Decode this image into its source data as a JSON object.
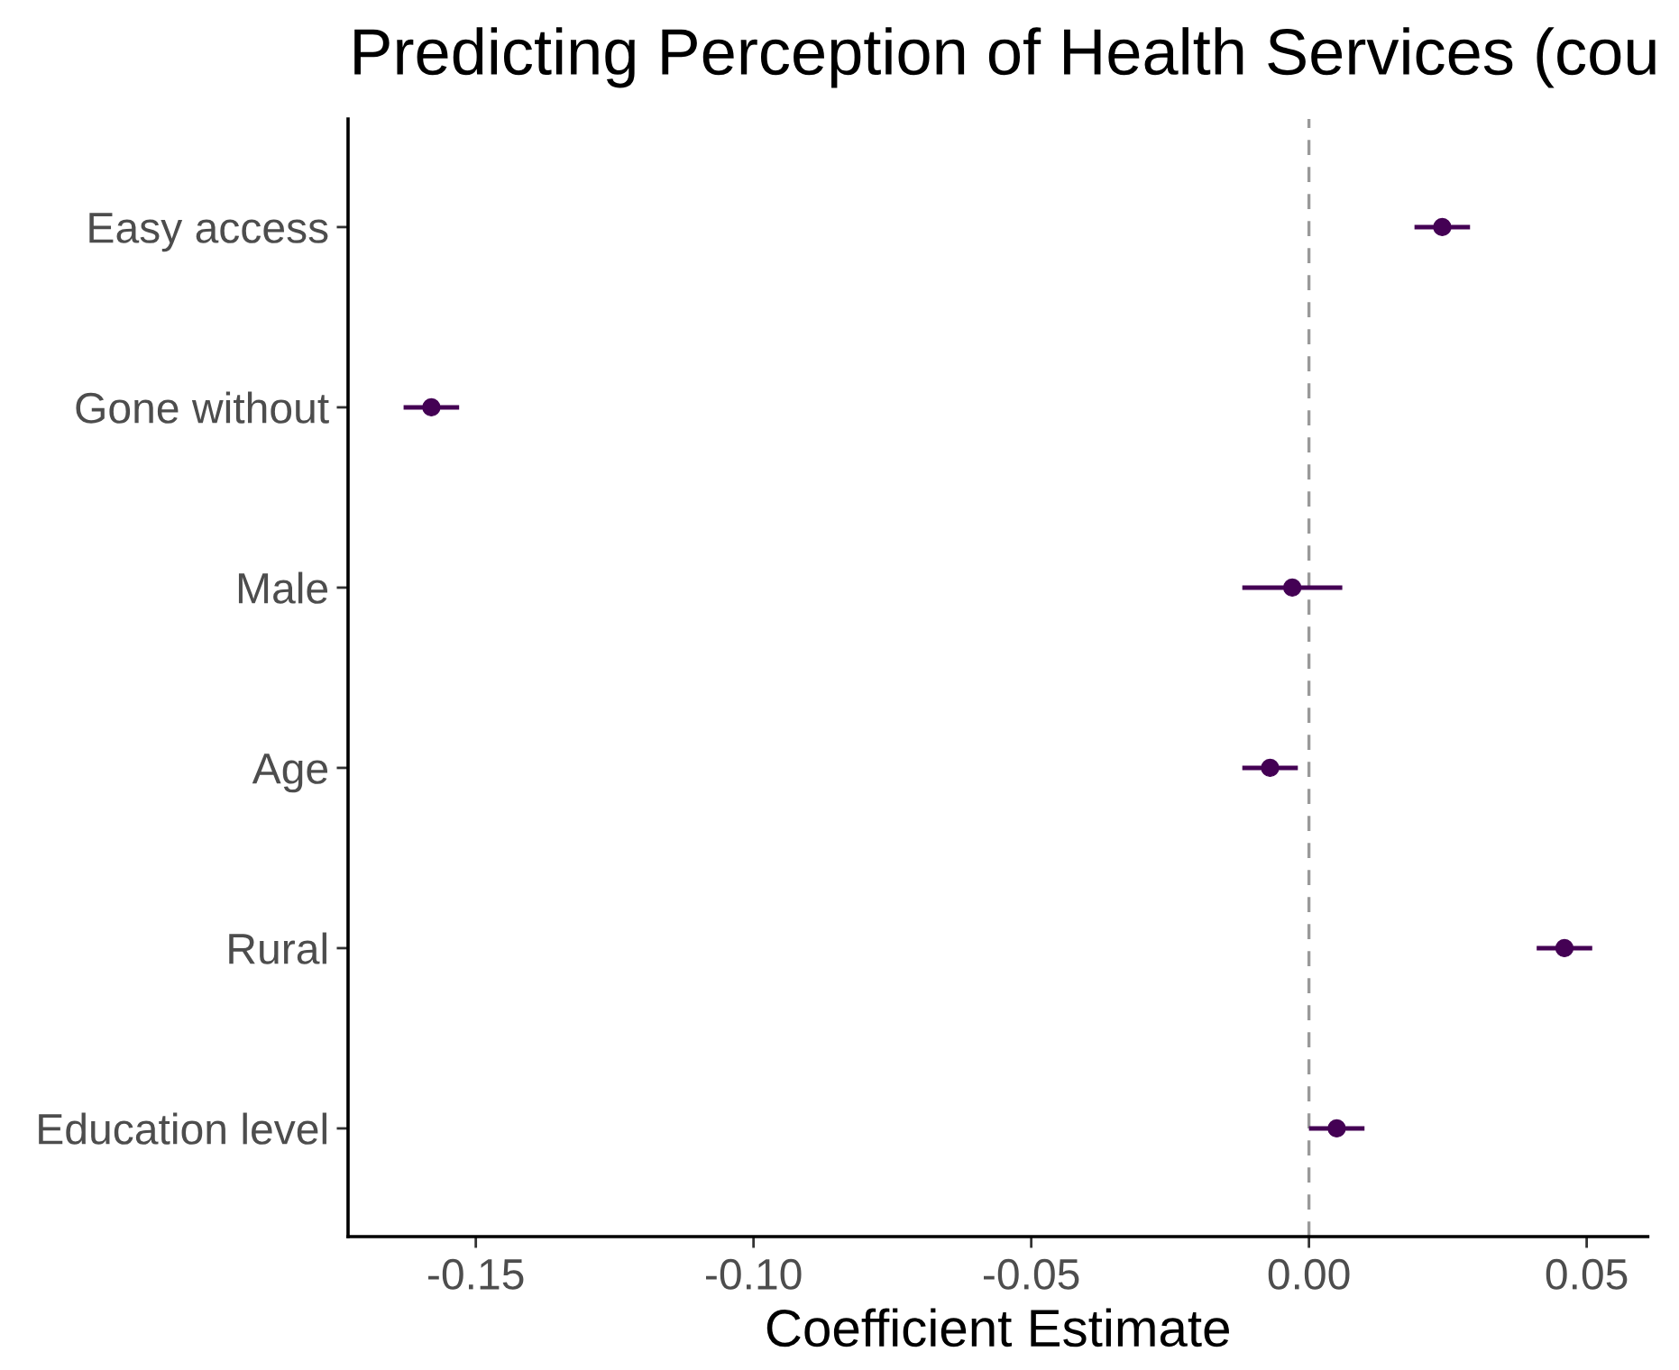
{
  "chart_data": {
    "type": "scatter",
    "title": "Predicting Perception of Health Services (cou",
    "xlabel": "Coefficient Estimate",
    "orientation": "horizontal",
    "categories": [
      "Easy access",
      "Gone without",
      "Male",
      "Age",
      "Rural",
      "Education level"
    ],
    "series": [
      {
        "color": "#440154",
        "values": [
          0.024,
          -0.158,
          -0.003,
          -0.007,
          0.046,
          0.005
        ],
        "errors": [
          0.005,
          0.005,
          0.009,
          0.005,
          0.005,
          0.005
        ]
      }
    ],
    "xlim": [
      -0.173,
      0.061
    ],
    "xticks": [
      {
        "value": -0.15,
        "label": "-0.15"
      },
      {
        "value": -0.1,
        "label": "-0.10"
      },
      {
        "value": -0.05,
        "label": "-0.05"
      },
      {
        "value": 0,
        "label": "0.00"
      },
      {
        "value": 0.05,
        "label": "0.05"
      }
    ],
    "ref_lines": [
      {
        "axis": "x",
        "value": 0,
        "color": "#999999",
        "line_style": "dashed"
      }
    ],
    "grid": false,
    "marker": "circle"
  }
}
